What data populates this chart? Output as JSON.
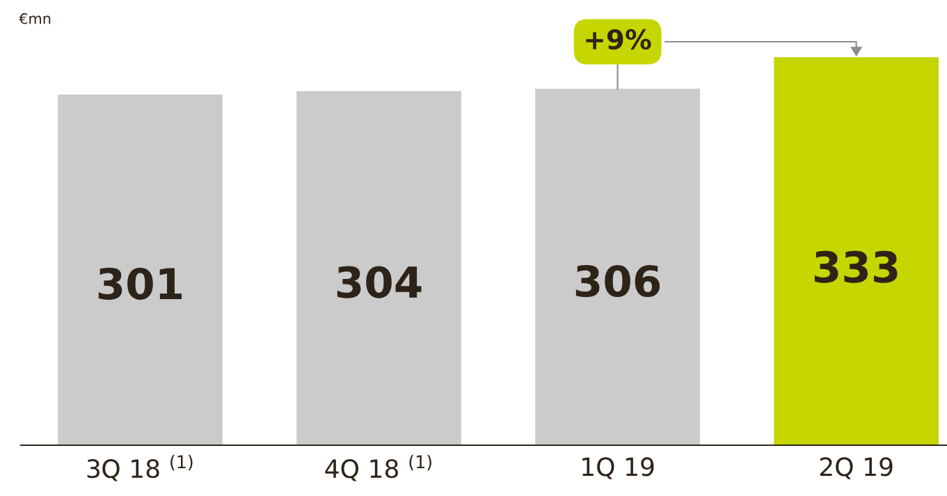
{
  "chart_data": {
    "type": "bar",
    "categories": [
      "3Q 18 $^{(1)}$",
      "4Q 18 $^{(1)}$",
      "1Q 19",
      "2Q 19"
    ],
    "values": [
      301,
      304,
      306,
      333
    ],
    "colors": [
      "#cbcbcb",
      "#cbcbcb",
      "#cbcbcb",
      "#c5d600"
    ],
    "ylabel": "€mn",
    "data_labels": true,
    "tick_labels": "x",
    "grid": false,
    "legend": false,
    "annotations": [
      "+9%"
    ]
  }
}
